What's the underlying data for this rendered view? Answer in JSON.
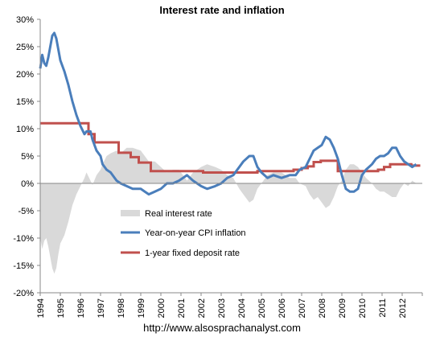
{
  "chart_data": {
    "type": "line",
    "title": "Interest rate and inflation",
    "xlabel": "",
    "ylabel": "",
    "xlim": [
      1994.0,
      2013.0
    ],
    "ylim": [
      -20,
      30
    ],
    "y_ticks": [
      30,
      25,
      20,
      15,
      10,
      5,
      0,
      -5,
      -10,
      -15,
      -20
    ],
    "y_tick_labels": [
      "30%",
      "25%",
      "20%",
      "15%",
      "10%",
      "5%",
      "0%",
      "-5%",
      "-10%",
      "-15%",
      "-20%"
    ],
    "x_tick_labels": [
      "1994",
      "1995",
      "1996",
      "1997",
      "1998",
      "1999",
      "2000",
      "2001",
      "2002",
      "2003",
      "2004",
      "2005",
      "2006",
      "2007",
      "2008",
      "2009",
      "2010",
      "2011",
      "2012"
    ],
    "grid": false,
    "legend_position": "bottom-left",
    "series": [
      {
        "name": "Real interest rate",
        "kind": "area",
        "color": "#d9d9d9",
        "points": [
          [
            1994.0,
            -10.0
          ],
          [
            1994.1,
            -12.0
          ],
          [
            1994.2,
            -10.5
          ],
          [
            1994.3,
            -10.0
          ],
          [
            1994.4,
            -11.5
          ],
          [
            1994.5,
            -13.5
          ],
          [
            1994.6,
            -15.5
          ],
          [
            1994.7,
            -16.5
          ],
          [
            1994.8,
            -15.5
          ],
          [
            1994.9,
            -13.0
          ],
          [
            1995.0,
            -11.0
          ],
          [
            1995.2,
            -9.5
          ],
          [
            1995.4,
            -7.0
          ],
          [
            1995.5,
            -5.5
          ],
          [
            1995.6,
            -4.0
          ],
          [
            1995.8,
            -2.0
          ],
          [
            1996.0,
            -0.5
          ],
          [
            1996.2,
            1.0
          ],
          [
            1996.3,
            2.0
          ],
          [
            1996.5,
            0.5
          ],
          [
            1996.6,
            -0.3
          ],
          [
            1996.8,
            1.5
          ],
          [
            1997.0,
            2.5
          ],
          [
            1997.1,
            3.5
          ],
          [
            1997.3,
            5.0
          ],
          [
            1997.5,
            5.5
          ],
          [
            1997.8,
            6.0
          ],
          [
            1998.0,
            5.5
          ],
          [
            1998.3,
            6.5
          ],
          [
            1998.6,
            6.5
          ],
          [
            1999.0,
            6.0
          ],
          [
            1999.2,
            5.0
          ],
          [
            1999.4,
            4.0
          ],
          [
            1999.7,
            4.0
          ],
          [
            2000.0,
            3.0
          ],
          [
            2000.3,
            2.0
          ],
          [
            2000.6,
            2.5
          ],
          [
            2000.9,
            2.5
          ],
          [
            2001.1,
            1.5
          ],
          [
            2001.3,
            0.5
          ],
          [
            2001.6,
            2.0
          ],
          [
            2002.0,
            3.0
          ],
          [
            2002.3,
            3.5
          ],
          [
            2002.7,
            3.0
          ],
          [
            2003.0,
            2.5
          ],
          [
            2003.3,
            1.5
          ],
          [
            2003.6,
            1.0
          ],
          [
            2003.9,
            -1.0
          ],
          [
            2004.1,
            -2.0
          ],
          [
            2004.4,
            -3.5
          ],
          [
            2004.6,
            -3.0
          ],
          [
            2004.8,
            -1.0
          ],
          [
            2005.0,
            0.0
          ],
          [
            2005.3,
            1.5
          ],
          [
            2005.6,
            2.0
          ],
          [
            2006.0,
            2.0
          ],
          [
            2006.4,
            1.0
          ],
          [
            2006.7,
            1.0
          ],
          [
            2006.9,
            0.0
          ],
          [
            2007.2,
            -0.5
          ],
          [
            2007.4,
            -2.0
          ],
          [
            2007.6,
            -3.0
          ],
          [
            2007.8,
            -2.5
          ],
          [
            2008.0,
            -3.5
          ],
          [
            2008.2,
            -4.5
          ],
          [
            2008.4,
            -4.0
          ],
          [
            2008.6,
            -2.5
          ],
          [
            2008.8,
            -0.5
          ],
          [
            2009.0,
            0.5
          ],
          [
            2009.2,
            2.5
          ],
          [
            2009.4,
            3.5
          ],
          [
            2009.6,
            3.5
          ],
          [
            2009.8,
            3.0
          ],
          [
            2010.0,
            2.0
          ],
          [
            2010.2,
            1.0
          ],
          [
            2010.5,
            0.0
          ],
          [
            2010.7,
            -1.0
          ],
          [
            2010.9,
            -1.5
          ],
          [
            2011.1,
            -1.5
          ],
          [
            2011.3,
            -2.0
          ],
          [
            2011.5,
            -2.5
          ],
          [
            2011.7,
            -2.5
          ],
          [
            2011.9,
            -1.0
          ],
          [
            2012.1,
            0.0
          ],
          [
            2012.3,
            -0.5
          ],
          [
            2012.5,
            0.5
          ],
          [
            2012.7,
            0.0
          ]
        ]
      },
      {
        "name": "Year-on-year CPI inflation",
        "kind": "line",
        "color": "#4a7ebb",
        "points": [
          [
            1994.0,
            21.0
          ],
          [
            1994.1,
            23.5
          ],
          [
            1994.2,
            22.0
          ],
          [
            1994.3,
            21.5
          ],
          [
            1994.4,
            23.0
          ],
          [
            1994.5,
            25.0
          ],
          [
            1994.6,
            27.0
          ],
          [
            1994.7,
            27.5
          ],
          [
            1994.8,
            26.5
          ],
          [
            1994.9,
            24.5
          ],
          [
            1995.0,
            22.5
          ],
          [
            1995.2,
            20.5
          ],
          [
            1995.4,
            18.0
          ],
          [
            1995.5,
            16.5
          ],
          [
            1995.6,
            15.0
          ],
          [
            1995.8,
            12.5
          ],
          [
            1996.0,
            10.5
          ],
          [
            1996.2,
            9.0
          ],
          [
            1996.3,
            9.5
          ],
          [
            1996.5,
            9.5
          ],
          [
            1996.6,
            8.0
          ],
          [
            1996.8,
            6.0
          ],
          [
            1997.0,
            5.0
          ],
          [
            1997.1,
            3.5
          ],
          [
            1997.3,
            2.5
          ],
          [
            1997.5,
            2.0
          ],
          [
            1997.8,
            0.5
          ],
          [
            1998.0,
            0.0
          ],
          [
            1998.3,
            -0.5
          ],
          [
            1998.6,
            -1.0
          ],
          [
            1999.0,
            -1.0
          ],
          [
            1999.2,
            -1.5
          ],
          [
            1999.4,
            -2.0
          ],
          [
            1999.7,
            -1.5
          ],
          [
            2000.0,
            -1.0
          ],
          [
            2000.3,
            0.0
          ],
          [
            2000.6,
            0.0
          ],
          [
            2000.9,
            0.5
          ],
          [
            2001.1,
            1.0
          ],
          [
            2001.3,
            1.5
          ],
          [
            2001.6,
            0.5
          ],
          [
            2002.0,
            -0.5
          ],
          [
            2002.3,
            -1.0
          ],
          [
            2002.7,
            -0.5
          ],
          [
            2003.0,
            0.0
          ],
          [
            2003.3,
            1.0
          ],
          [
            2003.6,
            1.5
          ],
          [
            2003.9,
            3.0
          ],
          [
            2004.1,
            4.0
          ],
          [
            2004.4,
            5.0
          ],
          [
            2004.6,
            5.0
          ],
          [
            2004.8,
            3.0
          ],
          [
            2005.0,
            2.0
          ],
          [
            2005.3,
            1.0
          ],
          [
            2005.6,
            1.5
          ],
          [
            2006.0,
            1.0
          ],
          [
            2006.4,
            1.5
          ],
          [
            2006.7,
            1.5
          ],
          [
            2006.9,
            2.5
          ],
          [
            2007.2,
            3.0
          ],
          [
            2007.4,
            4.5
          ],
          [
            2007.6,
            6.0
          ],
          [
            2007.8,
            6.5
          ],
          [
            2008.0,
            7.0
          ],
          [
            2008.2,
            8.5
          ],
          [
            2008.4,
            8.0
          ],
          [
            2008.6,
            6.5
          ],
          [
            2008.8,
            4.5
          ],
          [
            2009.0,
            1.5
          ],
          [
            2009.2,
            -1.0
          ],
          [
            2009.4,
            -1.5
          ],
          [
            2009.6,
            -1.5
          ],
          [
            2009.8,
            -1.0
          ],
          [
            2010.0,
            1.5
          ],
          [
            2010.2,
            2.5
          ],
          [
            2010.5,
            3.5
          ],
          [
            2010.7,
            4.5
          ],
          [
            2010.9,
            5.0
          ],
          [
            2011.1,
            5.0
          ],
          [
            2011.3,
            5.5
          ],
          [
            2011.5,
            6.5
          ],
          [
            2011.7,
            6.5
          ],
          [
            2011.9,
            5.0
          ],
          [
            2012.1,
            4.0
          ],
          [
            2012.3,
            3.5
          ],
          [
            2012.5,
            3.0
          ],
          [
            2012.7,
            3.5
          ]
        ]
      },
      {
        "name": "1-year fixed deposit rate",
        "kind": "step",
        "color": "#c0504d",
        "points": [
          [
            1994.0,
            11.0
          ],
          [
            1996.4,
            11.0
          ],
          [
            1996.4,
            9.0
          ],
          [
            1996.7,
            9.0
          ],
          [
            1996.7,
            7.5
          ],
          [
            1997.9,
            7.5
          ],
          [
            1997.9,
            5.6
          ],
          [
            1998.5,
            5.6
          ],
          [
            1998.5,
            4.8
          ],
          [
            1998.9,
            4.8
          ],
          [
            1998.9,
            3.8
          ],
          [
            1999.5,
            3.8
          ],
          [
            1999.5,
            2.25
          ],
          [
            2002.1,
            2.25
          ],
          [
            2002.1,
            1.98
          ],
          [
            2004.8,
            1.98
          ],
          [
            2004.8,
            2.25
          ],
          [
            2006.6,
            2.25
          ],
          [
            2006.6,
            2.5
          ],
          [
            2007.0,
            2.5
          ],
          [
            2007.0,
            2.8
          ],
          [
            2007.3,
            2.8
          ],
          [
            2007.3,
            3.1
          ],
          [
            2007.6,
            3.1
          ],
          [
            2007.6,
            3.9
          ],
          [
            2007.95,
            3.9
          ],
          [
            2007.95,
            4.14
          ],
          [
            2008.8,
            4.14
          ],
          [
            2008.8,
            2.25
          ],
          [
            2010.8,
            2.25
          ],
          [
            2010.8,
            2.5
          ],
          [
            2011.1,
            2.5
          ],
          [
            2011.1,
            3.0
          ],
          [
            2011.4,
            3.0
          ],
          [
            2011.4,
            3.5
          ],
          [
            2012.45,
            3.5
          ],
          [
            2012.45,
            3.25
          ],
          [
            2012.9,
            3.25
          ]
        ]
      }
    ]
  },
  "footer_text": "http://www.alsosprachanalyst.com"
}
